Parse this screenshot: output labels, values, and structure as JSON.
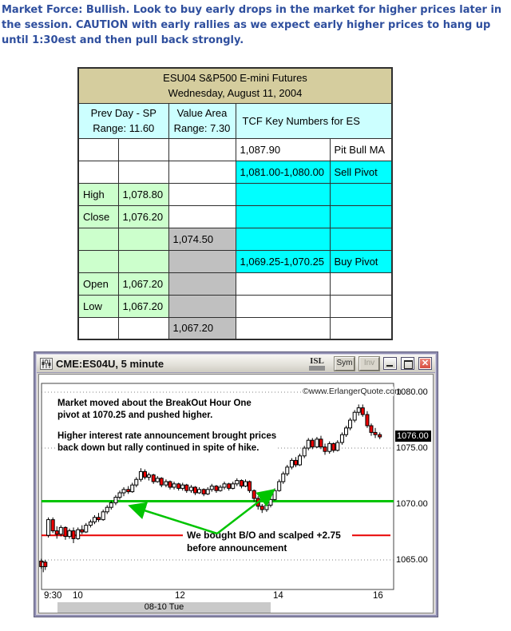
{
  "commentary": {
    "text": "Market Force: Bullish. Look to buy early drops in the market for higher prices later in the session. CAUTION with early rallies as we expect early higher prices to hang up until 1:30est and then pull back strongly.",
    "color": "#2f4f9e"
  },
  "table": {
    "title_line1": "ESU04 S&P500 E-mini Futures",
    "title_line2": "Wednesday, August 11, 2004",
    "col_headers": [
      {
        "line1": "Prev Day - SP",
        "line2": "Range: 11.60"
      },
      {
        "line1": "Value Area",
        "line2": "Range: 7.30"
      },
      {
        "line1": "TCF Key Numbers for ES",
        "line2": ""
      }
    ],
    "colors": {
      "cyan": "#00ffff",
      "light_cyan": "#ccffff",
      "light_green": "#ccffcc",
      "gray": "#c0c0c0",
      "tan": "#d5cd9e",
      "white": "#ffffff"
    },
    "rows": [
      [
        {
          "text": "",
          "bg": "white"
        },
        {
          "text": "",
          "bg": "white"
        },
        {
          "text": "",
          "bg": "white"
        },
        {
          "text": "1,087.90",
          "bg": "white"
        },
        {
          "text": "Pit Bull MA",
          "bg": "white"
        }
      ],
      [
        {
          "text": "",
          "bg": "white"
        },
        {
          "text": "",
          "bg": "white"
        },
        {
          "text": "",
          "bg": "white"
        },
        {
          "text": "1,081.00-1,080.00",
          "bg": "cyan"
        },
        {
          "text": "Sell Pivot",
          "bg": "cyan"
        }
      ],
      [
        {
          "text": "High",
          "bg": "light_green"
        },
        {
          "text": "1,078.80",
          "bg": "light_green"
        },
        {
          "text": "",
          "bg": "white"
        },
        {
          "text": "",
          "bg": "cyan"
        },
        {
          "text": "",
          "bg": "cyan"
        }
      ],
      [
        {
          "text": "Close",
          "bg": "light_green"
        },
        {
          "text": "1,076.20",
          "bg": "light_green"
        },
        {
          "text": "",
          "bg": "white"
        },
        {
          "text": "",
          "bg": "cyan"
        },
        {
          "text": "",
          "bg": "cyan"
        }
      ],
      [
        {
          "text": "",
          "bg": "light_green"
        },
        {
          "text": "",
          "bg": "light_green"
        },
        {
          "text": "1,074.50",
          "bg": "gray"
        },
        {
          "text": "",
          "bg": "cyan"
        },
        {
          "text": "",
          "bg": "cyan"
        }
      ],
      [
        {
          "text": "",
          "bg": "light_green"
        },
        {
          "text": "",
          "bg": "light_green"
        },
        {
          "text": "",
          "bg": "gray"
        },
        {
          "text": "1,069.25-1,070.25",
          "bg": "cyan"
        },
        {
          "text": "Buy Pivot",
          "bg": "cyan"
        }
      ],
      [
        {
          "text": "Open",
          "bg": "light_green"
        },
        {
          "text": "1,067.20",
          "bg": "light_green"
        },
        {
          "text": "",
          "bg": "gray"
        },
        {
          "text": "",
          "bg": "white"
        },
        {
          "text": "",
          "bg": "white"
        }
      ],
      [
        {
          "text": "Low",
          "bg": "light_green"
        },
        {
          "text": "1,067.20",
          "bg": "light_green"
        },
        {
          "text": "",
          "bg": "gray"
        },
        {
          "text": "",
          "bg": "white"
        },
        {
          "text": "",
          "bg": "white"
        }
      ],
      [
        {
          "text": "",
          "bg": "white"
        },
        {
          "text": "",
          "bg": "white"
        },
        {
          "text": "1,067.20",
          "bg": "gray"
        },
        {
          "text": "",
          "bg": "white"
        },
        {
          "text": "",
          "bg": "white"
        }
      ]
    ]
  },
  "chart_window": {
    "title": "CME:ES04U, 5 minute",
    "toolbar": {
      "isl": "ISL",
      "sym": "Sym",
      "inv": "Inv"
    },
    "copyright": "©www.ErlangerQuote.com",
    "annotations": {
      "para1_line1": "Market moved about the BreakOut Hour One",
      "para1_line2": "pivot at 1070.25 and pushed higher.",
      "para2_line1": "Higher interest rate announcement brought prices",
      "para2_line2": "back down but rally continued in spite of hike.",
      "trade_line1": "We bought B/O and scalped +2.75",
      "trade_line2": "before announcement"
    },
    "price_axis": {
      "top": "1080.00",
      "last": "1076.00",
      "mid": "1075.00",
      "pivot": "1070.00",
      "low": "1065.00"
    },
    "x_labels": [
      "9:30",
      "10",
      "12",
      "14",
      "16"
    ],
    "session_label": "08-10 Tue"
  },
  "chart_data": {
    "type": "candlestick",
    "symbol": "CME:ES04U",
    "interval": "5 minute",
    "session_date": "08-10 Tue",
    "title": "CME:ES04U, 5 minute",
    "ylim": [
      1063.5,
      1080.8
    ],
    "xlim_hours": [
      9.35,
      16.3
    ],
    "grid": "dotted",
    "gridlines": [
      1080,
      1075,
      1065
    ],
    "pivot_line": {
      "price": 1070.25,
      "color": "#00c400",
      "label": "BreakOut Hour One pivot"
    },
    "stop_line": {
      "price": 1067.2,
      "color": "#e80000"
    },
    "last_price": 1076.0,
    "candle_colors": {
      "up": "#ffffff",
      "down": "#ee0000",
      "outline": "#000000"
    },
    "candles": [
      [
        9.4,
        1064.9,
        1065.1,
        1064.2,
        1064.4
      ],
      [
        9.44,
        1064.4,
        1064.9,
        1063.9,
        1064.8
      ],
      [
        9.48,
        1064.8,
        1065.0,
        1064.1,
        1064.4
      ],
      [
        9.54,
        1067.2,
        1068.8,
        1067.0,
        1068.6
      ],
      [
        9.63,
        1068.6,
        1068.8,
        1067.4,
        1067.6
      ],
      [
        9.71,
        1067.6,
        1068.0,
        1066.9,
        1067.3
      ],
      [
        9.79,
        1067.3,
        1068.1,
        1067.1,
        1067.9
      ],
      [
        9.88,
        1067.9,
        1068.0,
        1066.8,
        1067.1
      ],
      [
        9.96,
        1067.1,
        1067.8,
        1066.9,
        1067.6
      ],
      [
        10.04,
        1067.6,
        1067.9,
        1066.5,
        1066.9
      ],
      [
        10.13,
        1066.9,
        1067.9,
        1066.8,
        1067.7
      ],
      [
        10.21,
        1067.7,
        1068.1,
        1067.3,
        1067.5
      ],
      [
        10.29,
        1067.5,
        1068.3,
        1067.4,
        1068.1
      ],
      [
        10.38,
        1068.1,
        1068.6,
        1067.9,
        1068.4
      ],
      [
        10.46,
        1068.4,
        1069.0,
        1068.2,
        1068.8
      ],
      [
        10.54,
        1068.8,
        1069.2,
        1068.4,
        1068.6
      ],
      [
        10.63,
        1068.6,
        1069.5,
        1068.5,
        1069.3
      ],
      [
        10.71,
        1069.3,
        1069.9,
        1069.1,
        1069.7
      ],
      [
        10.79,
        1069.7,
        1070.3,
        1069.5,
        1070.1
      ],
      [
        10.88,
        1070.1,
        1070.8,
        1069.9,
        1070.6
      ],
      [
        10.96,
        1070.6,
        1071.2,
        1070.4,
        1071.0
      ],
      [
        11.04,
        1071.0,
        1071.5,
        1070.7,
        1071.3
      ],
      [
        11.13,
        1071.3,
        1071.6,
        1070.9,
        1071.1
      ],
      [
        11.21,
        1071.1,
        1071.9,
        1071.0,
        1071.7
      ],
      [
        11.29,
        1071.7,
        1072.4,
        1071.5,
        1072.2
      ],
      [
        11.38,
        1072.2,
        1073.2,
        1072.0,
        1072.9
      ],
      [
        11.46,
        1072.9,
        1073.1,
        1072.2,
        1072.4
      ],
      [
        11.54,
        1072.4,
        1072.8,
        1072.1,
        1072.6
      ],
      [
        11.63,
        1072.6,
        1072.7,
        1071.8,
        1072.0
      ],
      [
        11.71,
        1072.0,
        1072.5,
        1071.9,
        1072.3
      ],
      [
        11.79,
        1072.3,
        1072.4,
        1071.5,
        1071.7
      ],
      [
        11.88,
        1071.7,
        1072.2,
        1071.5,
        1072.0
      ],
      [
        11.96,
        1072.0,
        1072.1,
        1071.3,
        1071.5
      ],
      [
        12.04,
        1071.5,
        1072.0,
        1071.3,
        1071.8
      ],
      [
        12.13,
        1071.8,
        1071.9,
        1071.2,
        1071.4
      ],
      [
        12.21,
        1071.4,
        1071.9,
        1071.2,
        1071.7
      ],
      [
        12.29,
        1071.7,
        1071.8,
        1071.0,
        1071.2
      ],
      [
        12.38,
        1071.2,
        1071.7,
        1071.0,
        1071.5
      ],
      [
        12.46,
        1071.5,
        1071.6,
        1070.8,
        1071.0
      ],
      [
        12.54,
        1071.0,
        1071.5,
        1070.9,
        1071.3
      ],
      [
        12.63,
        1071.3,
        1071.4,
        1070.7,
        1070.9
      ],
      [
        12.71,
        1070.9,
        1071.5,
        1070.8,
        1071.3
      ],
      [
        12.79,
        1071.3,
        1071.8,
        1071.1,
        1071.6
      ],
      [
        12.88,
        1071.6,
        1071.7,
        1071.0,
        1071.2
      ],
      [
        12.96,
        1071.2,
        1071.7,
        1071.1,
        1071.5
      ],
      [
        13.04,
        1071.5,
        1072.0,
        1071.3,
        1071.8
      ],
      [
        13.13,
        1071.8,
        1071.9,
        1071.2,
        1071.4
      ],
      [
        13.21,
        1071.4,
        1072.0,
        1071.3,
        1071.8
      ],
      [
        13.29,
        1071.8,
        1072.3,
        1071.6,
        1072.1
      ],
      [
        13.38,
        1072.1,
        1072.2,
        1071.4,
        1071.6
      ],
      [
        13.46,
        1071.6,
        1072.2,
        1071.5,
        1072.0
      ],
      [
        13.54,
        1072.0,
        1072.1,
        1071.0,
        1071.2
      ],
      [
        13.63,
        1071.2,
        1071.3,
        1070.2,
        1070.5
      ],
      [
        13.71,
        1070.5,
        1070.7,
        1069.5,
        1069.8
      ],
      [
        13.79,
        1069.8,
        1070.0,
        1069.2,
        1069.5
      ],
      [
        13.88,
        1069.5,
        1070.1,
        1069.3,
        1069.9
      ],
      [
        13.96,
        1069.9,
        1070.6,
        1069.7,
        1070.4
      ],
      [
        14.04,
        1070.4,
        1071.4,
        1070.3,
        1071.2
      ],
      [
        14.13,
        1071.2,
        1072.2,
        1071.1,
        1072.0
      ],
      [
        14.21,
        1072.0,
        1072.9,
        1071.8,
        1072.7
      ],
      [
        14.29,
        1072.7,
        1073.5,
        1072.5,
        1073.3
      ],
      [
        14.38,
        1073.3,
        1074.1,
        1073.1,
        1073.9
      ],
      [
        14.46,
        1073.9,
        1074.2,
        1073.3,
        1073.5
      ],
      [
        14.54,
        1073.5,
        1074.5,
        1073.4,
        1074.3
      ],
      [
        14.63,
        1074.3,
        1075.2,
        1074.1,
        1075.0
      ],
      [
        14.71,
        1075.0,
        1075.9,
        1074.8,
        1075.7
      ],
      [
        14.79,
        1075.7,
        1075.9,
        1074.9,
        1075.1
      ],
      [
        14.88,
        1075.1,
        1076.0,
        1075.0,
        1075.8
      ],
      [
        14.96,
        1075.8,
        1076.1,
        1074.9,
        1075.1
      ],
      [
        15.04,
        1075.1,
        1075.4,
        1074.4,
        1074.7
      ],
      [
        15.13,
        1074.7,
        1075.6,
        1074.5,
        1075.4
      ],
      [
        15.21,
        1075.4,
        1075.5,
        1074.6,
        1074.8
      ],
      [
        15.29,
        1074.8,
        1075.7,
        1074.7,
        1075.5
      ],
      [
        15.38,
        1075.5,
        1076.4,
        1075.3,
        1076.2
      ],
      [
        15.46,
        1076.2,
        1077.0,
        1076.0,
        1076.8
      ],
      [
        15.54,
        1076.8,
        1077.7,
        1076.6,
        1077.5
      ],
      [
        15.63,
        1077.5,
        1078.4,
        1077.3,
        1078.2
      ],
      [
        15.71,
        1078.2,
        1078.9,
        1077.9,
        1078.6
      ],
      [
        15.79,
        1078.6,
        1078.9,
        1077.8,
        1078.0
      ],
      [
        15.88,
        1078.0,
        1078.3,
        1076.8,
        1077.0
      ],
      [
        15.96,
        1077.0,
        1077.2,
        1076.1,
        1076.4
      ],
      [
        16.04,
        1076.4,
        1076.8,
        1075.9,
        1076.2
      ],
      [
        16.13,
        1076.2,
        1076.4,
        1075.8,
        1076.0
      ]
    ]
  }
}
